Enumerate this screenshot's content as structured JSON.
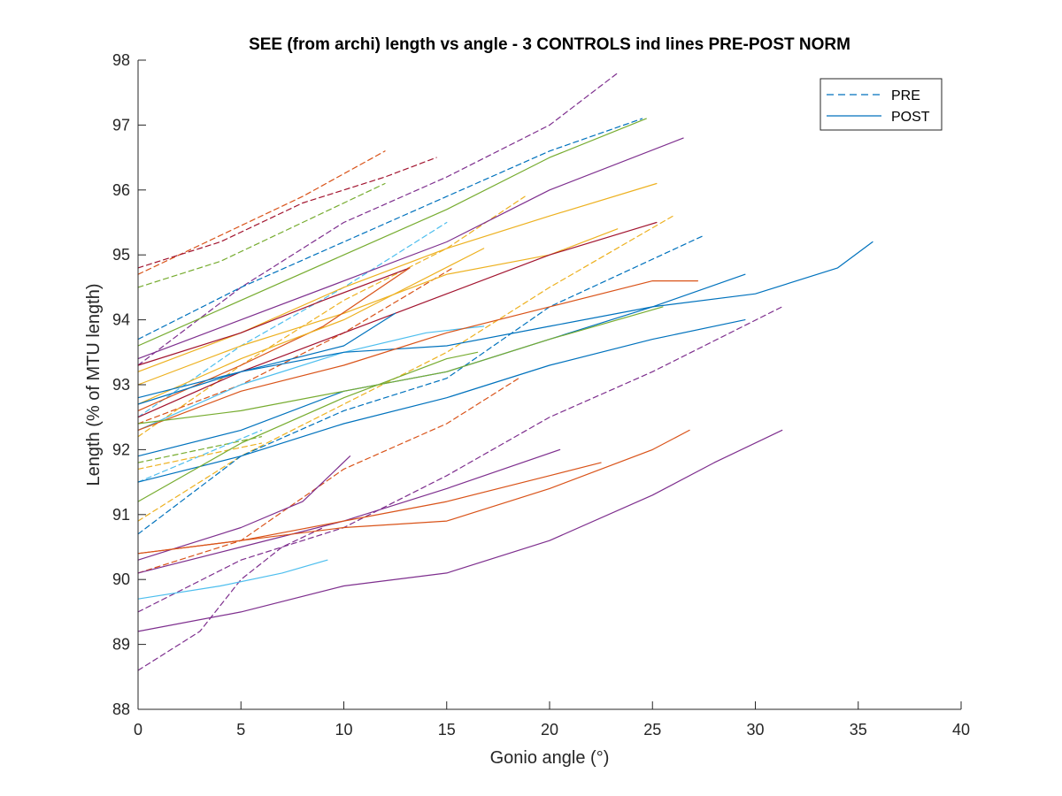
{
  "chart_data": {
    "type": "line",
    "title": "SEE (from archi) length vs angle - 3 CONTROLS ind lines PRE-POST NORM",
    "xlabel": "Gonio angle (°)",
    "ylabel": "Length (% of MTU length)",
    "xlim": [
      0,
      40
    ],
    "ylim": [
      88,
      98
    ],
    "xticks": [
      0,
      5,
      10,
      15,
      20,
      25,
      30,
      35,
      40
    ],
    "yticks": [
      88,
      89,
      90,
      91,
      92,
      93,
      94,
      95,
      96,
      97,
      98
    ],
    "grid": false,
    "legend": {
      "position": "top-right",
      "entries": [
        {
          "label": "PRE",
          "style": "dashed",
          "color": "#0072BD"
        },
        {
          "label": "POST",
          "style": "solid",
          "color": "#0072BD"
        }
      ]
    },
    "series": [
      {
        "style": "dashed",
        "color": "#D95319",
        "points": [
          [
            0,
            94.7
          ],
          [
            4,
            95.3
          ],
          [
            8,
            95.9
          ],
          [
            12,
            96.6
          ]
        ]
      },
      {
        "style": "dashed",
        "color": "#77AC30",
        "points": [
          [
            0,
            94.5
          ],
          [
            4,
            94.9
          ],
          [
            8,
            95.5
          ],
          [
            12,
            96.1
          ]
        ]
      },
      {
        "style": "dashed",
        "color": "#A2142F",
        "points": [
          [
            0,
            94.8
          ],
          [
            4,
            95.2
          ],
          [
            8,
            95.8
          ],
          [
            12,
            96.2
          ],
          [
            14.5,
            96.5
          ]
        ]
      },
      {
        "style": "dashed",
        "color": "#7E2F8E",
        "points": [
          [
            0,
            93.3
          ],
          [
            5,
            94.5
          ],
          [
            10,
            95.5
          ],
          [
            15,
            96.2
          ],
          [
            20,
            97.0
          ],
          [
            23.3,
            97.8
          ]
        ]
      },
      {
        "style": "dashed",
        "color": "#0072BD",
        "points": [
          [
            0,
            93.7
          ],
          [
            5,
            94.5
          ],
          [
            10,
            95.2
          ],
          [
            15,
            95.9
          ],
          [
            20,
            96.6
          ],
          [
            24.5,
            97.1
          ]
        ]
      },
      {
        "style": "dashed",
        "color": "#4DBEEE",
        "points": [
          [
            0,
            92.5
          ],
          [
            5,
            93.6
          ],
          [
            10,
            94.5
          ],
          [
            15,
            95.5
          ]
        ]
      },
      {
        "style": "dashed",
        "color": "#EDB120",
        "points": [
          [
            0,
            92.2
          ],
          [
            5,
            93.3
          ],
          [
            10,
            94.3
          ],
          [
            15,
            95.1
          ],
          [
            18.8,
            95.9
          ]
        ]
      },
      {
        "style": "dashed",
        "color": "#D95319",
        "points": [
          [
            0,
            92.4
          ],
          [
            5,
            93.0
          ],
          [
            10,
            93.8
          ],
          [
            15.3,
            94.8
          ]
        ]
      },
      {
        "style": "dashed",
        "color": "#EDB120",
        "points": [
          [
            0,
            90.9
          ],
          [
            5,
            91.9
          ],
          [
            10,
            92.7
          ],
          [
            15,
            93.5
          ],
          [
            20,
            94.5
          ],
          [
            26,
            95.6
          ]
        ]
      },
      {
        "style": "dashed",
        "color": "#0072BD",
        "points": [
          [
            0,
            90.7
          ],
          [
            5,
            91.9
          ],
          [
            10,
            92.6
          ],
          [
            15,
            93.1
          ],
          [
            20,
            94.2
          ],
          [
            27.5,
            95.3
          ]
        ]
      },
      {
        "style": "dashed",
        "color": "#77AC30",
        "points": [
          [
            0,
            91.8
          ],
          [
            3,
            92.0
          ],
          [
            6,
            92.2
          ]
        ]
      },
      {
        "style": "dashed",
        "color": "#4DBEEE",
        "points": [
          [
            0,
            91.5
          ],
          [
            3,
            91.9
          ],
          [
            6,
            92.3
          ]
        ]
      },
      {
        "style": "dashed",
        "color": "#EDB120",
        "points": [
          [
            0,
            91.7
          ],
          [
            3,
            91.9
          ],
          [
            6,
            92.1
          ]
        ]
      },
      {
        "style": "dashed",
        "color": "#D95319",
        "points": [
          [
            0,
            90.1
          ],
          [
            5,
            90.6
          ],
          [
            10,
            91.7
          ],
          [
            15,
            92.4
          ],
          [
            18.5,
            93.1
          ]
        ]
      },
      {
        "style": "dashed",
        "color": "#7E2F8E",
        "points": [
          [
            0,
            89.5
          ],
          [
            5,
            90.3
          ],
          [
            10,
            90.8
          ],
          [
            15,
            91.6
          ],
          [
            20,
            92.5
          ],
          [
            25,
            93.2
          ],
          [
            31.3,
            94.2
          ]
        ]
      },
      {
        "style": "dashed",
        "color": "#7E2F8E",
        "points": [
          [
            0,
            88.6
          ],
          [
            3,
            89.2
          ],
          [
            5,
            90.0
          ],
          [
            7,
            90.5
          ],
          [
            9,
            90.8
          ]
        ]
      },
      {
        "style": "solid",
        "color": "#77AC30",
        "points": [
          [
            0,
            93.6
          ],
          [
            5,
            94.3
          ],
          [
            10,
            95.0
          ],
          [
            15,
            95.7
          ],
          [
            20,
            96.5
          ],
          [
            24.7,
            97.1
          ]
        ]
      },
      {
        "style": "solid",
        "color": "#7E2F8E",
        "points": [
          [
            0,
            93.4
          ],
          [
            5,
            94.0
          ],
          [
            10,
            94.6
          ],
          [
            15,
            95.2
          ],
          [
            20,
            96.0
          ],
          [
            26.5,
            96.8
          ]
        ]
      },
      {
        "style": "solid",
        "color": "#EDB120",
        "points": [
          [
            0,
            93.2
          ],
          [
            5,
            93.8
          ],
          [
            10,
            94.5
          ],
          [
            15,
            95.1
          ],
          [
            20,
            95.6
          ],
          [
            25.2,
            96.1
          ]
        ]
      },
      {
        "style": "solid",
        "color": "#EDB120",
        "points": [
          [
            0,
            93.0
          ],
          [
            5,
            93.6
          ],
          [
            10,
            94.1
          ],
          [
            15,
            94.7
          ],
          [
            20,
            95.0
          ],
          [
            23.3,
            95.4
          ]
        ]
      },
      {
        "style": "solid",
        "color": "#A2142F",
        "points": [
          [
            0,
            92.5
          ],
          [
            5,
            93.2
          ],
          [
            10,
            93.8
          ],
          [
            15,
            94.4
          ],
          [
            20,
            95.0
          ],
          [
            25.2,
            95.5
          ]
        ]
      },
      {
        "style": "solid",
        "color": "#A2142F",
        "points": [
          [
            0,
            93.3
          ],
          [
            5,
            93.8
          ],
          [
            9,
            94.3
          ],
          [
            13.2,
            94.8
          ]
        ]
      },
      {
        "style": "solid",
        "color": "#D95319",
        "points": [
          [
            0,
            92.6
          ],
          [
            5,
            93.3
          ],
          [
            9,
            93.9
          ],
          [
            13.2,
            94.8
          ]
        ]
      },
      {
        "style": "solid",
        "color": "#EDB120",
        "points": [
          [
            0,
            92.7
          ],
          [
            5,
            93.4
          ],
          [
            10,
            94.0
          ],
          [
            16.8,
            95.1
          ]
        ]
      },
      {
        "style": "solid",
        "color": "#0072BD",
        "points": [
          [
            0,
            92.8
          ],
          [
            5,
            93.2
          ],
          [
            10,
            93.6
          ],
          [
            12.5,
            94.1
          ]
        ]
      },
      {
        "style": "solid",
        "color": "#4DBEEE",
        "points": [
          [
            0,
            92.3
          ],
          [
            5,
            93.0
          ],
          [
            10,
            93.5
          ],
          [
            14,
            93.8
          ],
          [
            16.8,
            93.9
          ]
        ]
      },
      {
        "style": "solid",
        "color": "#0072BD",
        "points": [
          [
            0,
            92.7
          ],
          [
            5,
            93.2
          ],
          [
            10,
            93.5
          ],
          [
            15,
            93.6
          ],
          [
            20,
            93.9
          ],
          [
            25,
            94.2
          ],
          [
            29.5,
            94.7
          ]
        ]
      },
      {
        "style": "solid",
        "color": "#0072BD",
        "points": [
          [
            0,
            91.9
          ],
          [
            5,
            92.3
          ],
          [
            10,
            92.9
          ],
          [
            15,
            93.2
          ],
          [
            20,
            93.7
          ],
          [
            25,
            94.2
          ],
          [
            30,
            94.4
          ],
          [
            34,
            94.8
          ],
          [
            35.7,
            95.2
          ]
        ]
      },
      {
        "style": "solid",
        "color": "#D95319",
        "points": [
          [
            0,
            92.3
          ],
          [
            5,
            92.9
          ],
          [
            10,
            93.3
          ],
          [
            15,
            93.8
          ],
          [
            20,
            94.2
          ],
          [
            25,
            94.6
          ],
          [
            27.2,
            94.6
          ]
        ]
      },
      {
        "style": "solid",
        "color": "#77AC30",
        "points": [
          [
            0,
            92.4
          ],
          [
            5,
            92.6
          ],
          [
            10,
            92.9
          ],
          [
            15,
            93.2
          ],
          [
            20,
            93.7
          ],
          [
            25.5,
            94.2
          ]
        ]
      },
      {
        "style": "solid",
        "color": "#0072BD",
        "points": [
          [
            0,
            91.5
          ],
          [
            5,
            91.9
          ],
          [
            10,
            92.4
          ],
          [
            15,
            92.8
          ],
          [
            20,
            93.3
          ],
          [
            25,
            93.7
          ],
          [
            29.5,
            94.0
          ]
        ]
      },
      {
        "style": "solid",
        "color": "#77AC30",
        "points": [
          [
            0,
            91.2
          ],
          [
            5,
            92.1
          ],
          [
            10,
            92.8
          ],
          [
            15,
            93.4
          ],
          [
            16.5,
            93.5
          ]
        ]
      },
      {
        "style": "solid",
        "color": "#7E2F8E",
        "points": [
          [
            0,
            90.3
          ],
          [
            5,
            90.8
          ],
          [
            8,
            91.2
          ],
          [
            10.3,
            91.9
          ]
        ]
      },
      {
        "style": "solid",
        "color": "#7E2F8E",
        "points": [
          [
            0,
            90.1
          ],
          [
            5,
            90.5
          ],
          [
            10,
            90.9
          ],
          [
            15,
            91.4
          ],
          [
            20.5,
            92.0
          ]
        ]
      },
      {
        "style": "solid",
        "color": "#D95319",
        "points": [
          [
            0,
            90.4
          ],
          [
            5,
            90.6
          ],
          [
            10,
            90.9
          ],
          [
            15,
            91.2
          ],
          [
            20,
            91.6
          ],
          [
            22.5,
            91.8
          ]
        ]
      },
      {
        "style": "solid",
        "color": "#D95319",
        "points": [
          [
            0,
            90.4
          ],
          [
            5,
            90.6
          ],
          [
            10,
            90.8
          ],
          [
            15,
            90.9
          ],
          [
            20,
            91.4
          ],
          [
            25,
            92.0
          ],
          [
            26.8,
            92.3
          ]
        ]
      },
      {
        "style": "solid",
        "color": "#4DBEEE",
        "points": [
          [
            0,
            89.7
          ],
          [
            4,
            89.9
          ],
          [
            7,
            90.1
          ],
          [
            9.2,
            90.3
          ]
        ]
      },
      {
        "style": "solid",
        "color": "#7E2F8E",
        "points": [
          [
            0,
            89.2
          ],
          [
            5,
            89.5
          ],
          [
            10,
            89.9
          ],
          [
            15,
            90.1
          ],
          [
            20,
            90.6
          ],
          [
            25,
            91.3
          ],
          [
            28,
            91.8
          ],
          [
            31.3,
            92.3
          ]
        ]
      }
    ]
  }
}
